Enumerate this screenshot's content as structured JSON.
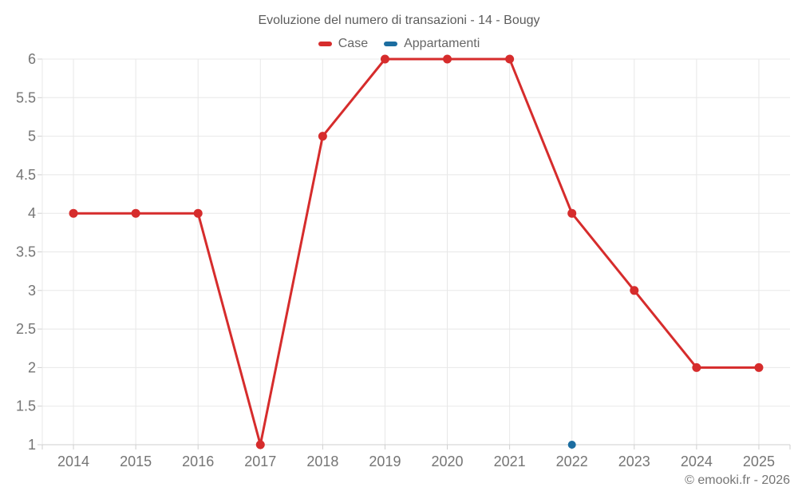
{
  "title": "Evoluzione del numero di transazioni - 14 - Bougy",
  "footer": "© emooki.fr - 2026",
  "colors": {
    "case": "#d62c2c",
    "appartamenti": "#1c6da0",
    "grid": "#e8e8e8",
    "axis": "#cfcfcf",
    "axis_label": "#757575",
    "title_text": "#5c5c5c",
    "background": "#ffffff"
  },
  "chart_data": {
    "type": "line",
    "title": "Evoluzione del numero di transazioni - 14 - Bougy",
    "categories": [
      "2014",
      "2015",
      "2016",
      "2017",
      "2018",
      "2019",
      "2020",
      "2021",
      "2022",
      "2023",
      "2024",
      "2025"
    ],
    "series": [
      {
        "name": "Case",
        "color_key": "case",
        "values": [
          4,
          4,
          4,
          1,
          5,
          6,
          6,
          6,
          4,
          3,
          2,
          2
        ]
      },
      {
        "name": "Appartamenti",
        "color_key": "appartamenti",
        "values": [
          null,
          null,
          null,
          null,
          null,
          null,
          null,
          null,
          1,
          null,
          null,
          null
        ]
      }
    ],
    "xlabel": "",
    "ylabel": "",
    "ylim": [
      1,
      6
    ],
    "ytick_step": 0.5,
    "grid": true,
    "legend_position": "top"
  }
}
